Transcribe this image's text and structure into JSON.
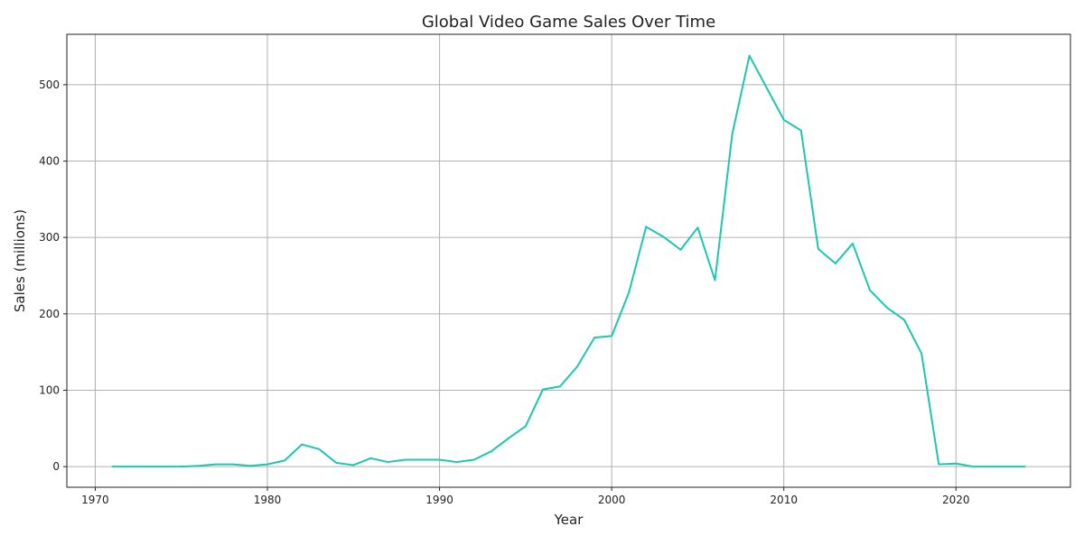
{
  "chart_data": {
    "type": "line",
    "title": "Global Video Game Sales Over Time",
    "xlabel": "Year",
    "ylabel": "Sales (millions)",
    "xlim": [
      1968.35,
      1926.65
    ],
    "ylim": [
      -27,
      566
    ],
    "grid": true,
    "x_ticks": [
      1970,
      1980,
      1990,
      2000,
      2010,
      2020
    ],
    "x_tick_labels": [
      "1970",
      "1980",
      "1990",
      "2000",
      "2010",
      "2020"
    ],
    "y_ticks": [
      0,
      100,
      200,
      300,
      400,
      500
    ],
    "y_tick_labels": [
      "0",
      "100",
      "200",
      "300",
      "400",
      "500"
    ],
    "series": [
      {
        "color": "#1cc7b1",
        "x": [
          1971,
          1972,
          1973,
          1974,
          1975,
          1976,
          1977,
          1978,
          1979,
          1980,
          1981,
          1982,
          1983,
          1984,
          1985,
          1986,
          1987,
          1988,
          1989,
          1990,
          1991,
          1992,
          1993,
          1994,
          1995,
          1996,
          1997,
          1998,
          1999,
          2000,
          2001,
          2002,
          2003,
          2004,
          2005,
          2006,
          2007,
          2008,
          2009,
          2010,
          2011,
          2012,
          2013,
          2014,
          2015,
          2016,
          2017,
          2018,
          2019,
          2020,
          2021,
          2022,
          2023,
          2024
        ],
        "y": [
          0,
          0,
          0,
          0,
          0,
          1,
          3,
          3,
          1,
          3,
          8,
          29,
          23,
          5,
          2,
          11,
          6,
          9,
          9,
          9,
          6,
          9,
          20,
          37,
          53,
          101,
          105,
          131,
          169,
          171,
          228,
          314,
          301,
          284,
          313,
          244,
          435,
          538,
          496,
          454,
          440,
          285,
          266,
          292,
          231,
          208,
          192,
          148,
          3,
          4,
          0,
          0,
          0,
          0
        ]
      }
    ]
  }
}
